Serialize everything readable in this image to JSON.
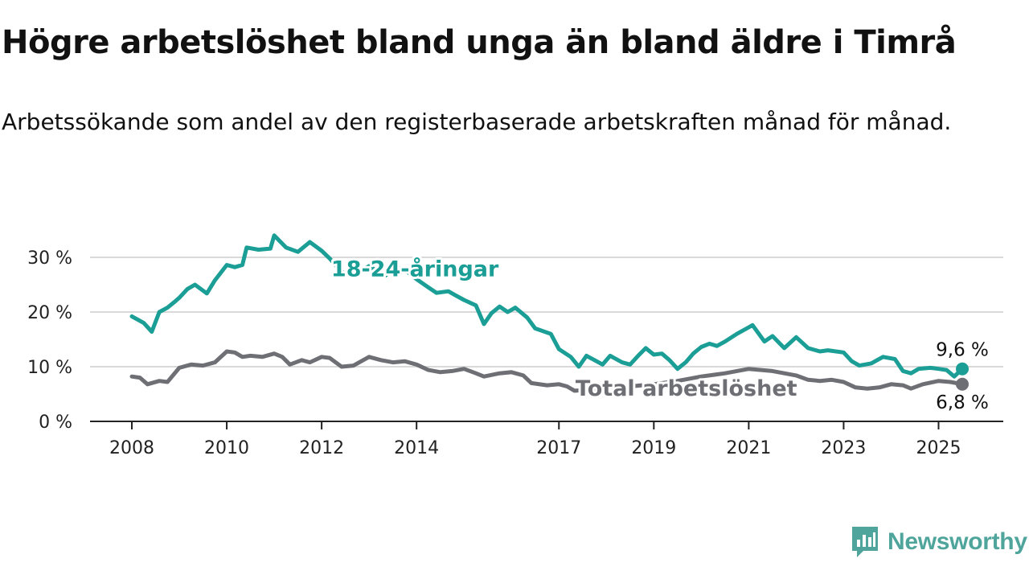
{
  "header": {
    "title": "Högre arbetslöshet bland unga än bland äldre i Timrå",
    "subtitle": "Arbetssökande som andel av den registerbaserade arbetskraften månad för månad."
  },
  "brand": {
    "name": "Newsworthy",
    "icon": "newsworthy-logo-icon",
    "color": "#4fa59b"
  },
  "chart_data": {
    "type": "line",
    "title": "Högre arbetslöshet bland unga än bland äldre i Timrå",
    "subtitle": "Arbetssökande som andel av den registerbaserade arbetskraften månad för månad.",
    "xlabel": "",
    "ylabel": "",
    "y_unit": "%",
    "ylim": [
      0,
      35
    ],
    "xlim": [
      2008,
      2026
    ],
    "grid": "horizontal",
    "y_ticks": [
      {
        "value": 0,
        "label": "0 %"
      },
      {
        "value": 10,
        "label": "10 %"
      },
      {
        "value": 20,
        "label": "20 %"
      },
      {
        "value": 30,
        "label": "30 %"
      }
    ],
    "x_ticks": [
      {
        "value": 2008,
        "label": "2008"
      },
      {
        "value": 2010,
        "label": "2010"
      },
      {
        "value": 2012,
        "label": "2012"
      },
      {
        "value": 2014,
        "label": "2014"
      },
      {
        "value": 2017,
        "label": "2017"
      },
      {
        "value": 2019,
        "label": "2019"
      },
      {
        "value": 2021,
        "label": "2021"
      },
      {
        "value": 2023,
        "label": "2023"
      },
      {
        "value": 2025,
        "label": "2025"
      }
    ],
    "series": [
      {
        "name": "18-24-åringar",
        "color": "#1a9e96",
        "end_label": "9,6 %",
        "points": [
          [
            2008.0,
            19.2
          ],
          [
            2008.25,
            18.0
          ],
          [
            2008.42,
            16.4
          ],
          [
            2008.58,
            20.0
          ],
          [
            2008.75,
            20.8
          ],
          [
            2008.92,
            22.0
          ],
          [
            2009.0,
            22.6
          ],
          [
            2009.17,
            24.2
          ],
          [
            2009.33,
            25.0
          ],
          [
            2009.58,
            23.4
          ],
          [
            2009.75,
            25.8
          ],
          [
            2010.0,
            28.6
          ],
          [
            2010.17,
            28.2
          ],
          [
            2010.33,
            28.6
          ],
          [
            2010.42,
            31.8
          ],
          [
            2010.67,
            31.4
          ],
          [
            2010.92,
            31.6
          ],
          [
            2011.0,
            34.0
          ],
          [
            2011.25,
            31.8
          ],
          [
            2011.5,
            31.0
          ],
          [
            2011.75,
            32.8
          ],
          [
            2012.0,
            31.2
          ],
          [
            2012.17,
            29.8
          ],
          [
            2012.33,
            28.2
          ],
          [
            2012.5,
            26.8
          ],
          [
            2012.75,
            27.0
          ],
          [
            2013.0,
            28.4
          ],
          [
            2013.33,
            26.6
          ],
          [
            2013.58,
            28.2
          ],
          [
            2013.83,
            27.2
          ],
          [
            2014.0,
            26.0
          ],
          [
            2014.25,
            24.5
          ],
          [
            2014.42,
            23.5
          ],
          [
            2014.67,
            23.8
          ],
          [
            2014.83,
            23.0
          ],
          [
            2015.0,
            22.2
          ],
          [
            2015.25,
            21.2
          ],
          [
            2015.42,
            17.8
          ],
          [
            2015.58,
            19.8
          ],
          [
            2015.75,
            21.0
          ],
          [
            2015.92,
            20.0
          ],
          [
            2016.08,
            20.8
          ],
          [
            2016.33,
            19.0
          ],
          [
            2016.5,
            17.0
          ],
          [
            2016.83,
            16.0
          ],
          [
            2017.0,
            13.2
          ],
          [
            2017.25,
            11.8
          ],
          [
            2017.42,
            10.0
          ],
          [
            2017.58,
            12.0
          ],
          [
            2017.75,
            11.2
          ],
          [
            2017.92,
            10.4
          ],
          [
            2018.08,
            12.0
          ],
          [
            2018.33,
            10.8
          ],
          [
            2018.5,
            10.4
          ],
          [
            2018.67,
            12.0
          ],
          [
            2018.83,
            13.4
          ],
          [
            2019.0,
            12.2
          ],
          [
            2019.17,
            12.4
          ],
          [
            2019.33,
            11.2
          ],
          [
            2019.5,
            9.6
          ],
          [
            2019.67,
            10.8
          ],
          [
            2019.83,
            12.4
          ],
          [
            2020.0,
            13.6
          ],
          [
            2020.17,
            14.2
          ],
          [
            2020.33,
            13.8
          ],
          [
            2020.5,
            14.6
          ],
          [
            2020.75,
            16.0
          ],
          [
            2021.0,
            17.2
          ],
          [
            2021.08,
            17.6
          ],
          [
            2021.33,
            14.6
          ],
          [
            2021.5,
            15.6
          ],
          [
            2021.75,
            13.4
          ],
          [
            2022.0,
            15.4
          ],
          [
            2022.25,
            13.4
          ],
          [
            2022.5,
            12.8
          ],
          [
            2022.67,
            13.0
          ],
          [
            2023.0,
            12.6
          ],
          [
            2023.17,
            11.0
          ],
          [
            2023.33,
            10.2
          ],
          [
            2023.58,
            10.6
          ],
          [
            2023.83,
            11.8
          ],
          [
            2024.08,
            11.4
          ],
          [
            2024.25,
            9.2
          ],
          [
            2024.42,
            8.8
          ],
          [
            2024.58,
            9.6
          ],
          [
            2024.83,
            9.8
          ],
          [
            2025.0,
            9.6
          ],
          [
            2025.17,
            9.4
          ],
          [
            2025.33,
            8.2
          ],
          [
            2025.5,
            9.6
          ]
        ]
      },
      {
        "name": "Total arbetslöshet",
        "color": "#6e6e75",
        "end_label": "6,8 %",
        "points": [
          [
            2008.0,
            8.2
          ],
          [
            2008.17,
            8.0
          ],
          [
            2008.33,
            6.8
          ],
          [
            2008.58,
            7.4
          ],
          [
            2008.75,
            7.2
          ],
          [
            2009.0,
            9.8
          ],
          [
            2009.25,
            10.4
          ],
          [
            2009.5,
            10.2
          ],
          [
            2009.75,
            10.8
          ],
          [
            2010.0,
            12.8
          ],
          [
            2010.17,
            12.6
          ],
          [
            2010.33,
            11.8
          ],
          [
            2010.5,
            12.0
          ],
          [
            2010.75,
            11.8
          ],
          [
            2011.0,
            12.4
          ],
          [
            2011.17,
            11.8
          ],
          [
            2011.33,
            10.4
          ],
          [
            2011.58,
            11.2
          ],
          [
            2011.75,
            10.8
          ],
          [
            2012.0,
            11.8
          ],
          [
            2012.17,
            11.6
          ],
          [
            2012.42,
            10.0
          ],
          [
            2012.67,
            10.2
          ],
          [
            2013.0,
            11.8
          ],
          [
            2013.25,
            11.2
          ],
          [
            2013.5,
            10.8
          ],
          [
            2013.75,
            11.0
          ],
          [
            2014.0,
            10.4
          ],
          [
            2014.25,
            9.4
          ],
          [
            2014.5,
            9.0
          ],
          [
            2014.75,
            9.2
          ],
          [
            2015.0,
            9.6
          ],
          [
            2015.25,
            8.8
          ],
          [
            2015.42,
            8.2
          ],
          [
            2015.75,
            8.8
          ],
          [
            2016.0,
            9.0
          ],
          [
            2016.25,
            8.4
          ],
          [
            2016.42,
            7.0
          ],
          [
            2016.75,
            6.6
          ],
          [
            2017.0,
            6.8
          ],
          [
            2017.17,
            6.4
          ],
          [
            2017.33,
            5.6
          ],
          [
            2017.67,
            5.8
          ],
          [
            2018.0,
            6.2
          ],
          [
            2018.5,
            6.4
          ],
          [
            2019.0,
            6.8
          ],
          [
            2019.5,
            7.4
          ],
          [
            2020.0,
            8.2
          ],
          [
            2020.5,
            8.8
          ],
          [
            2021.0,
            9.6
          ],
          [
            2021.5,
            9.2
          ],
          [
            2022.0,
            8.4
          ],
          [
            2022.25,
            7.6
          ],
          [
            2022.5,
            7.4
          ],
          [
            2022.75,
            7.6
          ],
          [
            2023.0,
            7.2
          ],
          [
            2023.25,
            6.2
          ],
          [
            2023.5,
            6.0
          ],
          [
            2023.75,
            6.2
          ],
          [
            2024.0,
            6.8
          ],
          [
            2024.25,
            6.6
          ],
          [
            2024.42,
            6.0
          ],
          [
            2024.67,
            6.8
          ],
          [
            2025.0,
            7.4
          ],
          [
            2025.25,
            7.2
          ],
          [
            2025.5,
            6.8
          ]
        ]
      }
    ],
    "inline_labels": [
      {
        "series": "18-24-åringar",
        "text": "18-24-åringar",
        "x": 2012.2,
        "y": 28.0
      },
      {
        "series": "Total arbetslöshet",
        "text": "Total arbetslöshet",
        "x": 2017.35,
        "y": 6.2
      }
    ]
  }
}
